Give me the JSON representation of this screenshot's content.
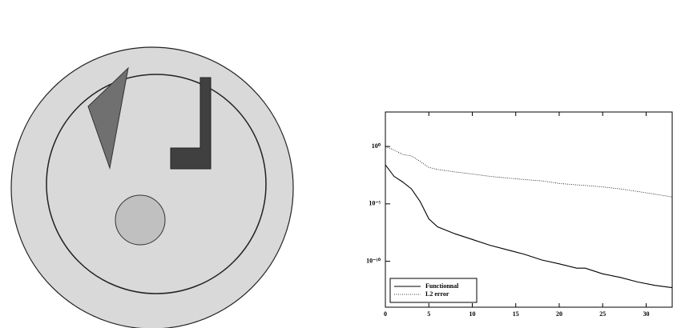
{
  "chart_data": {
    "type": "line",
    "x": [
      0,
      1,
      2,
      3,
      4,
      5,
      6,
      8,
      10,
      12,
      14,
      16,
      18,
      20,
      22,
      23,
      25,
      27,
      29,
      31,
      33
    ],
    "series": [
      {
        "name": "Functionnal",
        "color": "#000000",
        "dash": "solid",
        "values": [
          0.025,
          0.0025,
          0.0008,
          0.0002,
          1.6e-05,
          5e-07,
          1e-07,
          2.5e-08,
          8e-09,
          2.5e-09,
          1e-09,
          4e-10,
          1.3e-10,
          6e-11,
          2.5e-11,
          2.5e-11,
          8e-12,
          4e-12,
          1.6e-12,
          8e-13,
          5e-13
        ]
      },
      {
        "name": "L2 error",
        "color": "#000000",
        "dash": "dotted",
        "values": [
          1,
          0.5,
          0.2,
          0.15,
          0.05,
          0.015,
          0.01,
          0.006,
          0.004,
          0.0025,
          0.0018,
          0.0013,
          0.001,
          0.0006,
          0.00045,
          0.0004,
          0.0003,
          0.0002,
          0.00012,
          7e-05,
          4e-05
        ]
      }
    ],
    "xlim": [
      0,
      33
    ],
    "xticks": [
      0,
      5,
      10,
      15,
      20,
      25,
      30
    ],
    "ylim": [
      1e-14,
      1000
    ],
    "ylog": true,
    "yticks": [
      {
        "value": 1,
        "label": "10⁰"
      },
      {
        "value": 1e-05,
        "label": "10⁻⁵"
      },
      {
        "value": 1e-10,
        "label": "10⁻¹⁰"
      }
    ],
    "legend": "lower left"
  }
}
